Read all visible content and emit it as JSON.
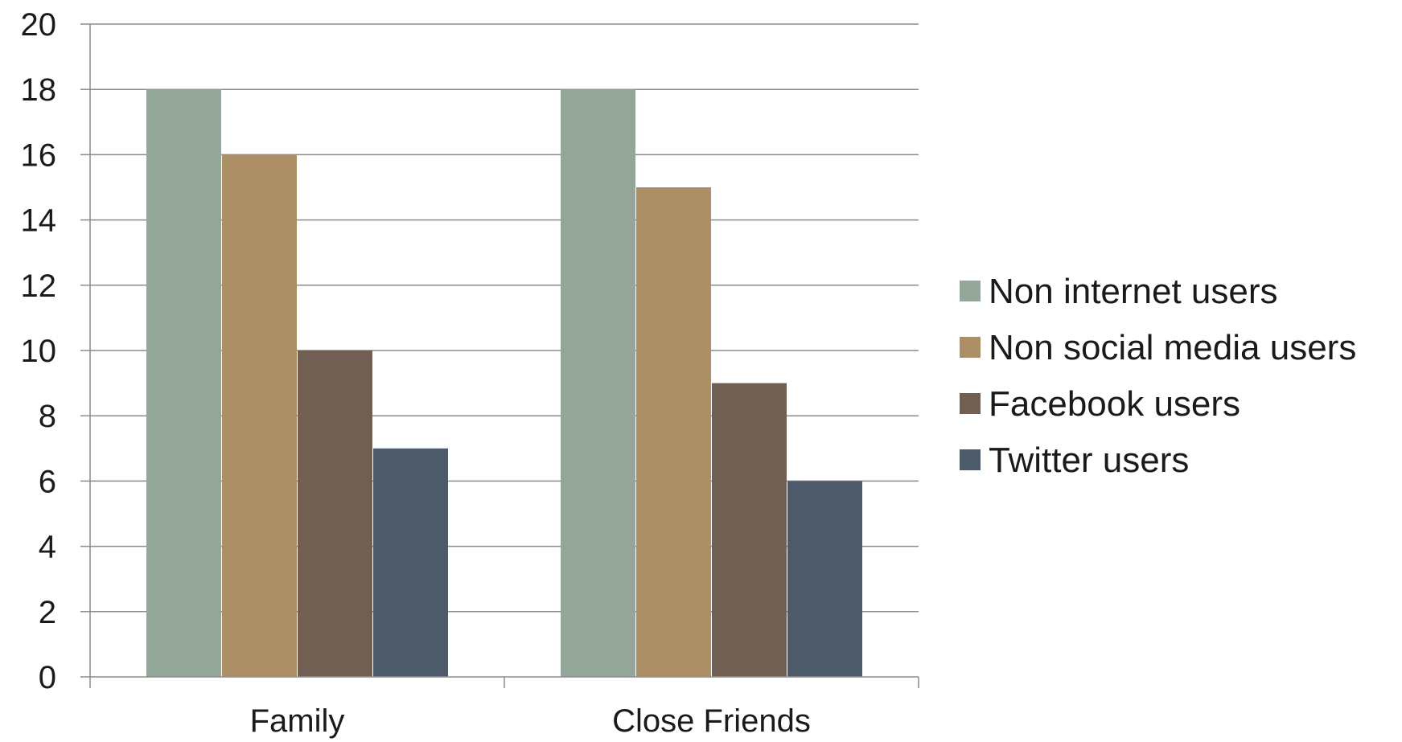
{
  "chart_data": {
    "type": "bar",
    "categories": [
      "Family",
      "Close Friends"
    ],
    "series": [
      {
        "name": "Non internet users",
        "values": [
          18,
          18
        ],
        "color": "#94a59a"
      },
      {
        "name": "Non social media users",
        "values": [
          16,
          15
        ],
        "color": "#ad8f66"
      },
      {
        "name": "Facebook users",
        "values": [
          10,
          9
        ],
        "color": "#725f54"
      },
      {
        "name": "Twitter users",
        "values": [
          7,
          6
        ],
        "color": "#4d5a6a"
      }
    ],
    "ylim": [
      0,
      20
    ],
    "yticks": [
      0,
      2,
      4,
      6,
      8,
      10,
      12,
      14,
      16,
      18,
      20
    ],
    "grid": true,
    "legend_position": "right",
    "colors": {
      "grid": "#8c8c8c",
      "axis": "#8c8c8c",
      "text": "#1a1a1a"
    }
  }
}
